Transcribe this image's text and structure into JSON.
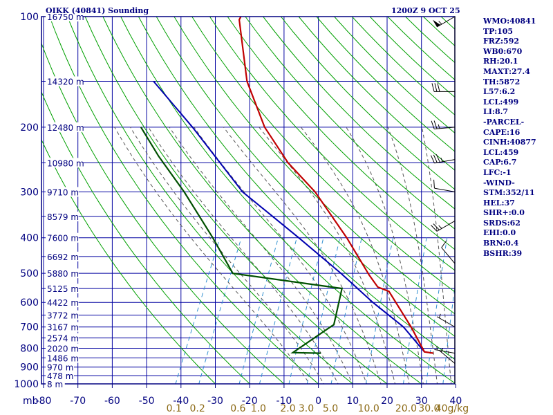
{
  "header": {
    "station": "OIKK (40841) Sounding",
    "datetime": "1200Z  9 OCT 25"
  },
  "stats": [
    "WMO:40841",
    "TP:105",
    "FRZ:592",
    "WB0:670",
    "RH:20.1",
    "MAXT:27.4",
    "TH:5872",
    "L57:6.2",
    "LCL:499",
    "LI:8.7",
    "-PARCEL-",
    "CAPE:16",
    "CINH:40877",
    "LCL:459",
    "CAP:6.7",
    "LFC:-1",
    "-WIND-",
    "STM:352/11",
    "HEL:37",
    "SHR+:0.0",
    "SRDS:62",
    "EHI:0.0",
    "BRN:0.4",
    "BSHR:39"
  ],
  "colors": {
    "axis": "#000080",
    "grid": "#0000a0",
    "dry_adiabat": "#00a000",
    "moist_adiabat": "#555555",
    "mixing_ratio": "#3090d0",
    "temperature": "#c00000",
    "dewpoint": "#005000",
    "parcel": "#0000b0",
    "mixing_label": "#8b6914"
  },
  "chart_data": {
    "type": "skew-t",
    "title": "OIKK (40841) Sounding",
    "pressure_unit_label": "mb",
    "mixing_ratio_unit": "g/kg",
    "xlim": [
      -80,
      40
    ],
    "pressure_range": [
      1000,
      100
    ],
    "pressure_ticks": [
      100,
      200,
      300,
      400,
      500,
      600,
      700,
      800,
      900,
      1000
    ],
    "pressure_tick_labels": [
      "100",
      "200",
      "300",
      "400",
      "500",
      "600",
      "700",
      "800",
      "900",
      "1000"
    ],
    "temperature_ticks": [
      -80,
      -70,
      -60,
      -50,
      -40,
      -30,
      -20,
      -10,
      0,
      10,
      20,
      30,
      40
    ],
    "temperature_tick_labels": [
      "-80",
      "-70",
      "-60",
      "-50",
      "-40",
      "-30",
      "-20",
      "-10",
      "0",
      "10",
      "20",
      "30",
      "40"
    ],
    "mixing_ratios": [
      0.1,
      0.2,
      0.6,
      1.0,
      2.0,
      3.0,
      5.0,
      10.0,
      20.0,
      30.0,
      40.0
    ],
    "mixing_ratio_labels": [
      "0.1",
      "0.2",
      "0.6",
      "1.0",
      "2.0",
      "3.0",
      "5.0",
      "10.0",
      "20.0",
      "30.0",
      "40g/kg"
    ],
    "heights": [
      {
        "p": 1000,
        "label": "8 m"
      },
      {
        "p": 950,
        "label": "478 m"
      },
      {
        "p": 900,
        "label": "970 m"
      },
      {
        "p": 850,
        "label": "1486 m"
      },
      {
        "p": 800,
        "label": "2020 m"
      },
      {
        "p": 750,
        "label": "2574 m"
      },
      {
        "p": 700,
        "label": "3167 m"
      },
      {
        "p": 650,
        "label": "3772 m"
      },
      {
        "p": 600,
        "label": "4422 m"
      },
      {
        "p": 550,
        "label": "5125 m"
      },
      {
        "p": 500,
        "label": "5880 m"
      },
      {
        "p": 450,
        "label": "6692 m"
      },
      {
        "p": 400,
        "label": "7600 m"
      },
      {
        "p": 350,
        "label": "8579 m"
      },
      {
        "p": 300,
        "label": "9710 m"
      },
      {
        "p": 250,
        "label": "10980 m"
      },
      {
        "p": 200,
        "label": "12480 m"
      },
      {
        "p": 150,
        "label": "14320 m"
      },
      {
        "p": 100,
        "label": "16750 m"
      }
    ],
    "temperature": [
      {
        "p": 825,
        "t": 29.0
      },
      {
        "p": 818,
        "t": 26.2
      },
      {
        "p": 700,
        "t": 18.7
      },
      {
        "p": 560,
        "t": 7.1
      },
      {
        "p": 545,
        "t": 3.2
      },
      {
        "p": 505,
        "t": -1.1
      },
      {
        "p": 400,
        "t": -13.0
      },
      {
        "p": 300,
        "t": -28.9
      },
      {
        "p": 250,
        "t": -41.0
      },
      {
        "p": 200,
        "t": -53.0
      },
      {
        "p": 150,
        "t": -64.8
      },
      {
        "p": 102,
        "t": -76.0
      },
      {
        "p": 100,
        "t": -76.0
      }
    ],
    "dewpoint": [
      {
        "p": 825,
        "t": -3.8
      },
      {
        "p": 822,
        "t": -12.0
      },
      {
        "p": 700,
        "t": -4.8
      },
      {
        "p": 690,
        "t": -4.1
      },
      {
        "p": 550,
        "t": -7.0
      },
      {
        "p": 500,
        "t": -41.0
      },
      {
        "p": 400,
        "t": -52.0
      },
      {
        "p": 300,
        "t": -67.0
      },
      {
        "p": 240,
        "t": -79.6
      },
      {
        "p": 200,
        "t": -89.0
      }
    ],
    "parcel": [
      {
        "p": 818,
        "t": 26.2
      },
      {
        "p": 700,
        "t": 16.5
      },
      {
        "p": 600,
        "t": 4.0
      },
      {
        "p": 500,
        "t": -9.5
      },
      {
        "p": 400,
        "t": -27.0
      },
      {
        "p": 300,
        "t": -50.0
      },
      {
        "p": 200,
        "t": -74.0
      },
      {
        "p": 150,
        "t": -92.0
      }
    ],
    "wind_barbs": [
      {
        "p": 100,
        "dir": 240,
        "speed": 55
      },
      {
        "p": 160,
        "dir": 270,
        "speed": 30
      },
      {
        "p": 200,
        "dir": 265,
        "speed": 25
      },
      {
        "p": 245,
        "dir": 260,
        "speed": 35
      },
      {
        "p": 300,
        "dir": 280,
        "speed": 10
      },
      {
        "p": 360,
        "dir": 240,
        "speed": 25
      },
      {
        "p": 470,
        "dir": 320,
        "speed": 10
      },
      {
        "p": 700,
        "dir": 300,
        "speed": 5
      },
      {
        "p": 825,
        "dir": 280,
        "speed": 3
      },
      {
        "p": 880,
        "dir": 310,
        "speed": 5
      }
    ]
  }
}
